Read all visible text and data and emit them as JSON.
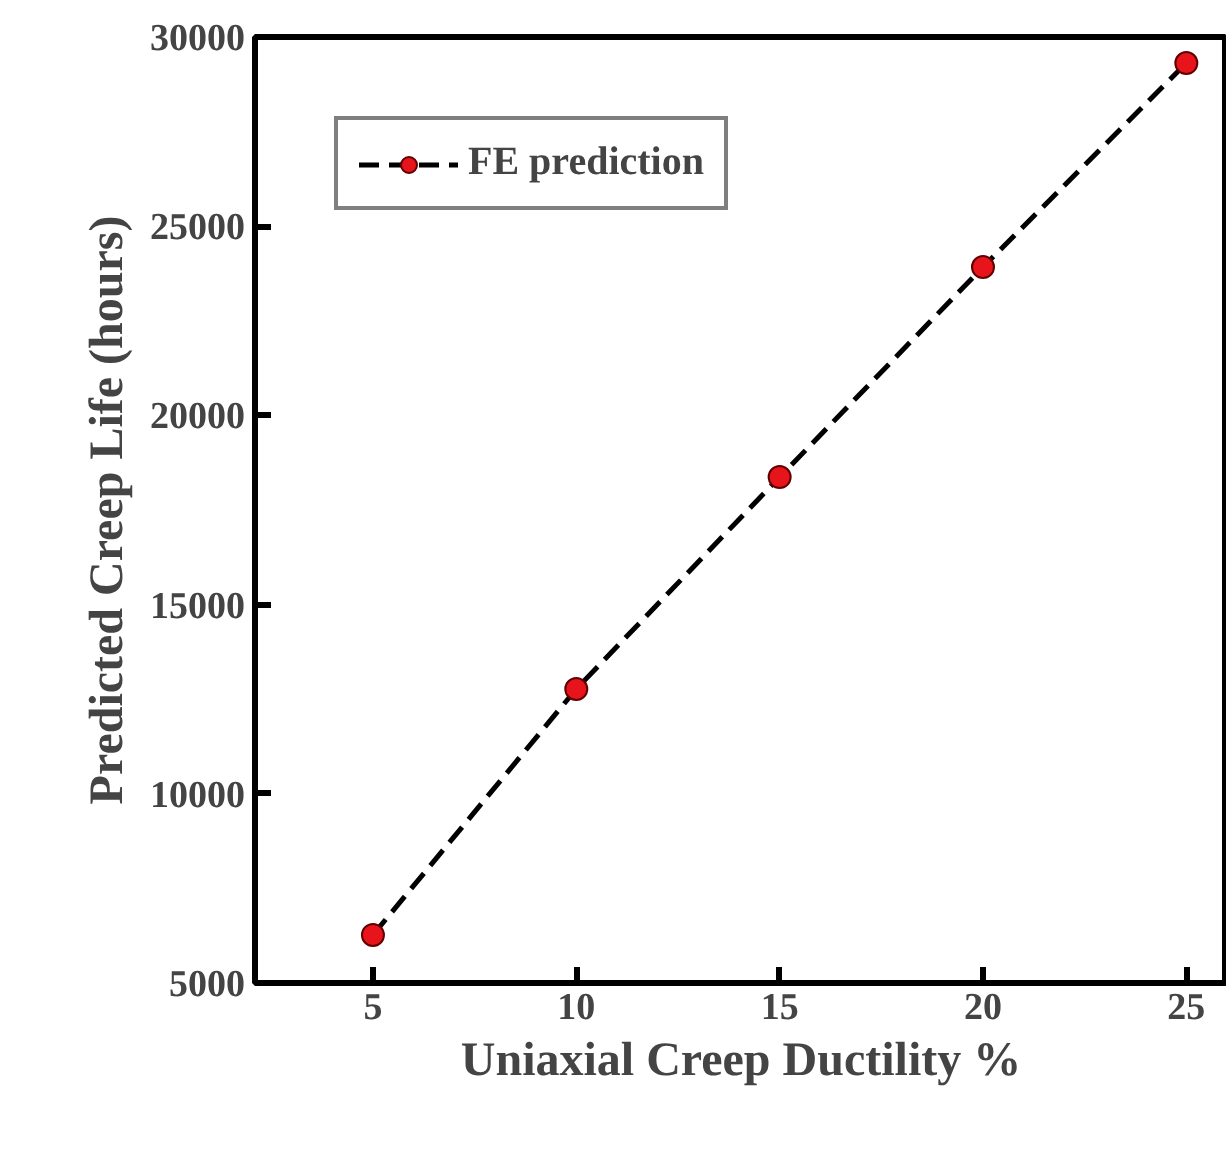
{
  "chart_data": {
    "type": "line",
    "xlabel": "Uniaxial Creep Ductility %",
    "ylabel": "Predicted Creep Life (hours)",
    "x": [
      5,
      10,
      15,
      20,
      25
    ],
    "series": [
      {
        "name": "FE prediction",
        "color": "#e8141c",
        "values": [
          6270,
          12770,
          18370,
          23920,
          29310
        ]
      }
    ],
    "xlim": [
      2.1,
      26
    ],
    "ylim": [
      5000,
      30000
    ],
    "xticks": [
      5,
      10,
      15,
      20,
      25
    ],
    "yticks": [
      5000,
      10000,
      15000,
      20000,
      25000,
      30000
    ],
    "marker": "circle",
    "line_style": "dashed",
    "legend": "top left",
    "grid": false
  }
}
